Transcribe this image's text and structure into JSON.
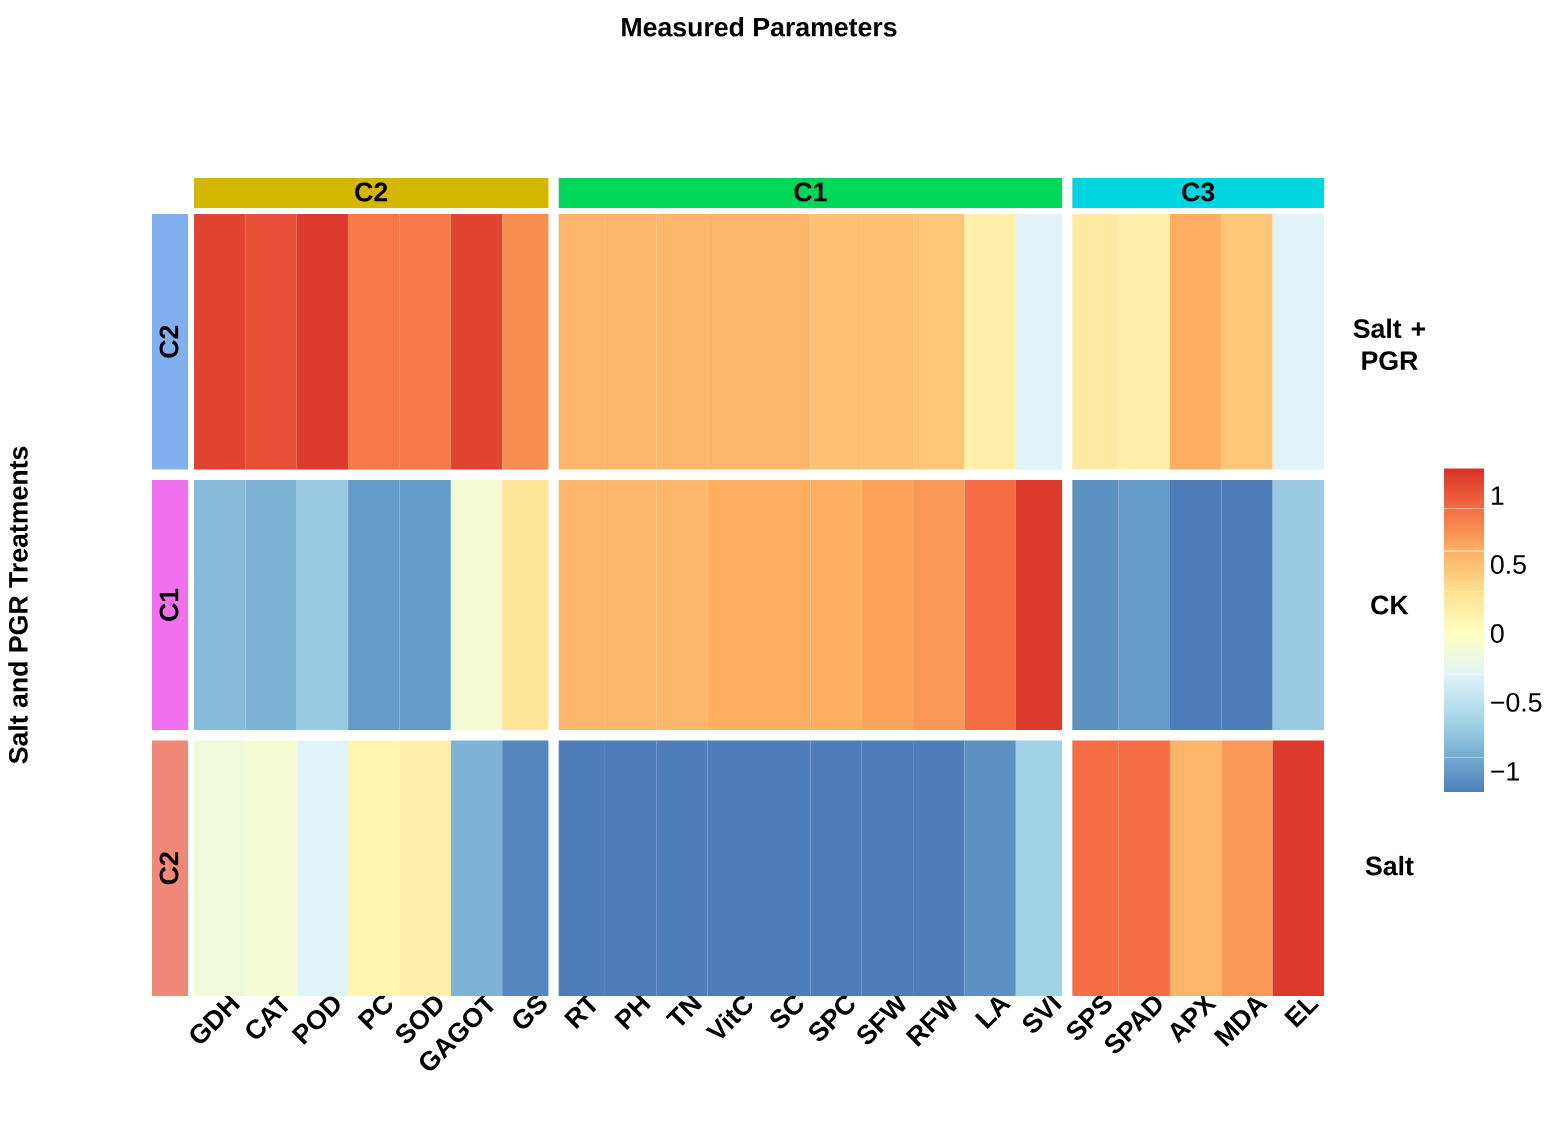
{
  "chart_data": {
    "type": "heatmap",
    "title": "Measured Parameters",
    "categories": [
      "GDH",
      "CAT",
      "POD",
      "PC",
      "SOD",
      "GAGOT",
      "GS",
      "RT",
      "PH",
      "TN",
      "VitC",
      "SC",
      "SPC",
      "SFW",
      "RFW",
      "LA",
      "SVI",
      "SPS",
      "SPAD",
      "APX",
      "MDA",
      "EL"
    ],
    "y_categories": [
      "Salt + PGR",
      "CK",
      "Salt"
    ],
    "cells": [
      [
        1.1,
        1.05,
        1.15,
        0.85,
        0.85,
        1.1,
        0.75,
        0.55,
        0.55,
        0.55,
        0.55,
        0.55,
        0.5,
        0.5,
        0.45,
        0.15,
        -0.3,
        0.2,
        0.15,
        0.6,
        0.45,
        -0.3
      ],
      [
        -0.8,
        -0.85,
        -0.7,
        -1.0,
        -1.0,
        -0.1,
        0.25,
        0.55,
        0.55,
        0.55,
        0.6,
        0.6,
        0.6,
        0.65,
        0.7,
        0.9,
        1.15,
        -1.05,
        -1.0,
        -1.15,
        -1.15,
        -0.7
      ],
      [
        -0.15,
        -0.1,
        -0.3,
        0.1,
        0.15,
        -0.85,
        -1.1,
        -1.15,
        -1.15,
        -1.15,
        -1.15,
        -1.15,
        -1.15,
        -1.15,
        -1.15,
        -1.05,
        -0.65,
        0.9,
        0.9,
        0.55,
        0.7,
        1.15
      ]
    ],
    "clim": [
      -1.15,
      1.2
    ],
    "cticks": [
      {
        "value": -1,
        "label": "−1"
      },
      {
        "value": -0.5,
        "label": "−0.5"
      },
      {
        "value": 0,
        "label": "0"
      },
      {
        "value": 0.5,
        "label": "0.5"
      },
      {
        "value": 1,
        "label": "1"
      }
    ],
    "annotations": [
      "C2",
      "C1",
      "C3",
      "C2",
      "C1",
      "C2",
      "Salt and PGR Treatments"
    ]
  }
}
